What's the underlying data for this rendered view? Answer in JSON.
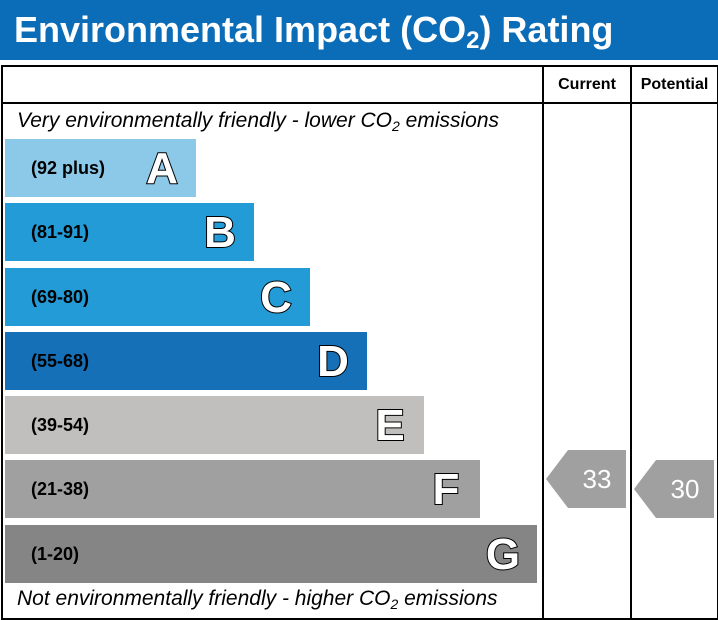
{
  "header": {
    "title_pre": "Environmental Impact (CO",
    "title_sub": "2",
    "title_post": ") Rating"
  },
  "columns": {
    "current": "Current",
    "potential": "Potential"
  },
  "notes": {
    "top_pre": "Very environmentally friendly - lower CO",
    "top_sub": "2",
    "top_post": " emissions",
    "bottom_pre": "Not environmentally friendly - higher CO",
    "bottom_sub": "2",
    "bottom_post": " emissions"
  },
  "bands": [
    {
      "letter": "A",
      "range": "(92 plus)",
      "color": "#8cc8e8"
    },
    {
      "letter": "B",
      "range": "(81-91)",
      "color": "#239bd6"
    },
    {
      "letter": "C",
      "range": "(69-80)",
      "color": "#239bd6"
    },
    {
      "letter": "D",
      "range": "(55-68)",
      "color": "#1570b8"
    },
    {
      "letter": "E",
      "range": "(39-54)",
      "color": "#c0bfbd"
    },
    {
      "letter": "F",
      "range": "(21-38)",
      "color": "#a0a0a0"
    },
    {
      "letter": "G",
      "range": "(1-20)",
      "color": "#858585"
    }
  ],
  "ratings": {
    "current": {
      "value": "33",
      "band": "F",
      "color": "#a0a0a0"
    },
    "potential": {
      "value": "30",
      "band": "F",
      "color": "#a0a0a0"
    }
  }
}
